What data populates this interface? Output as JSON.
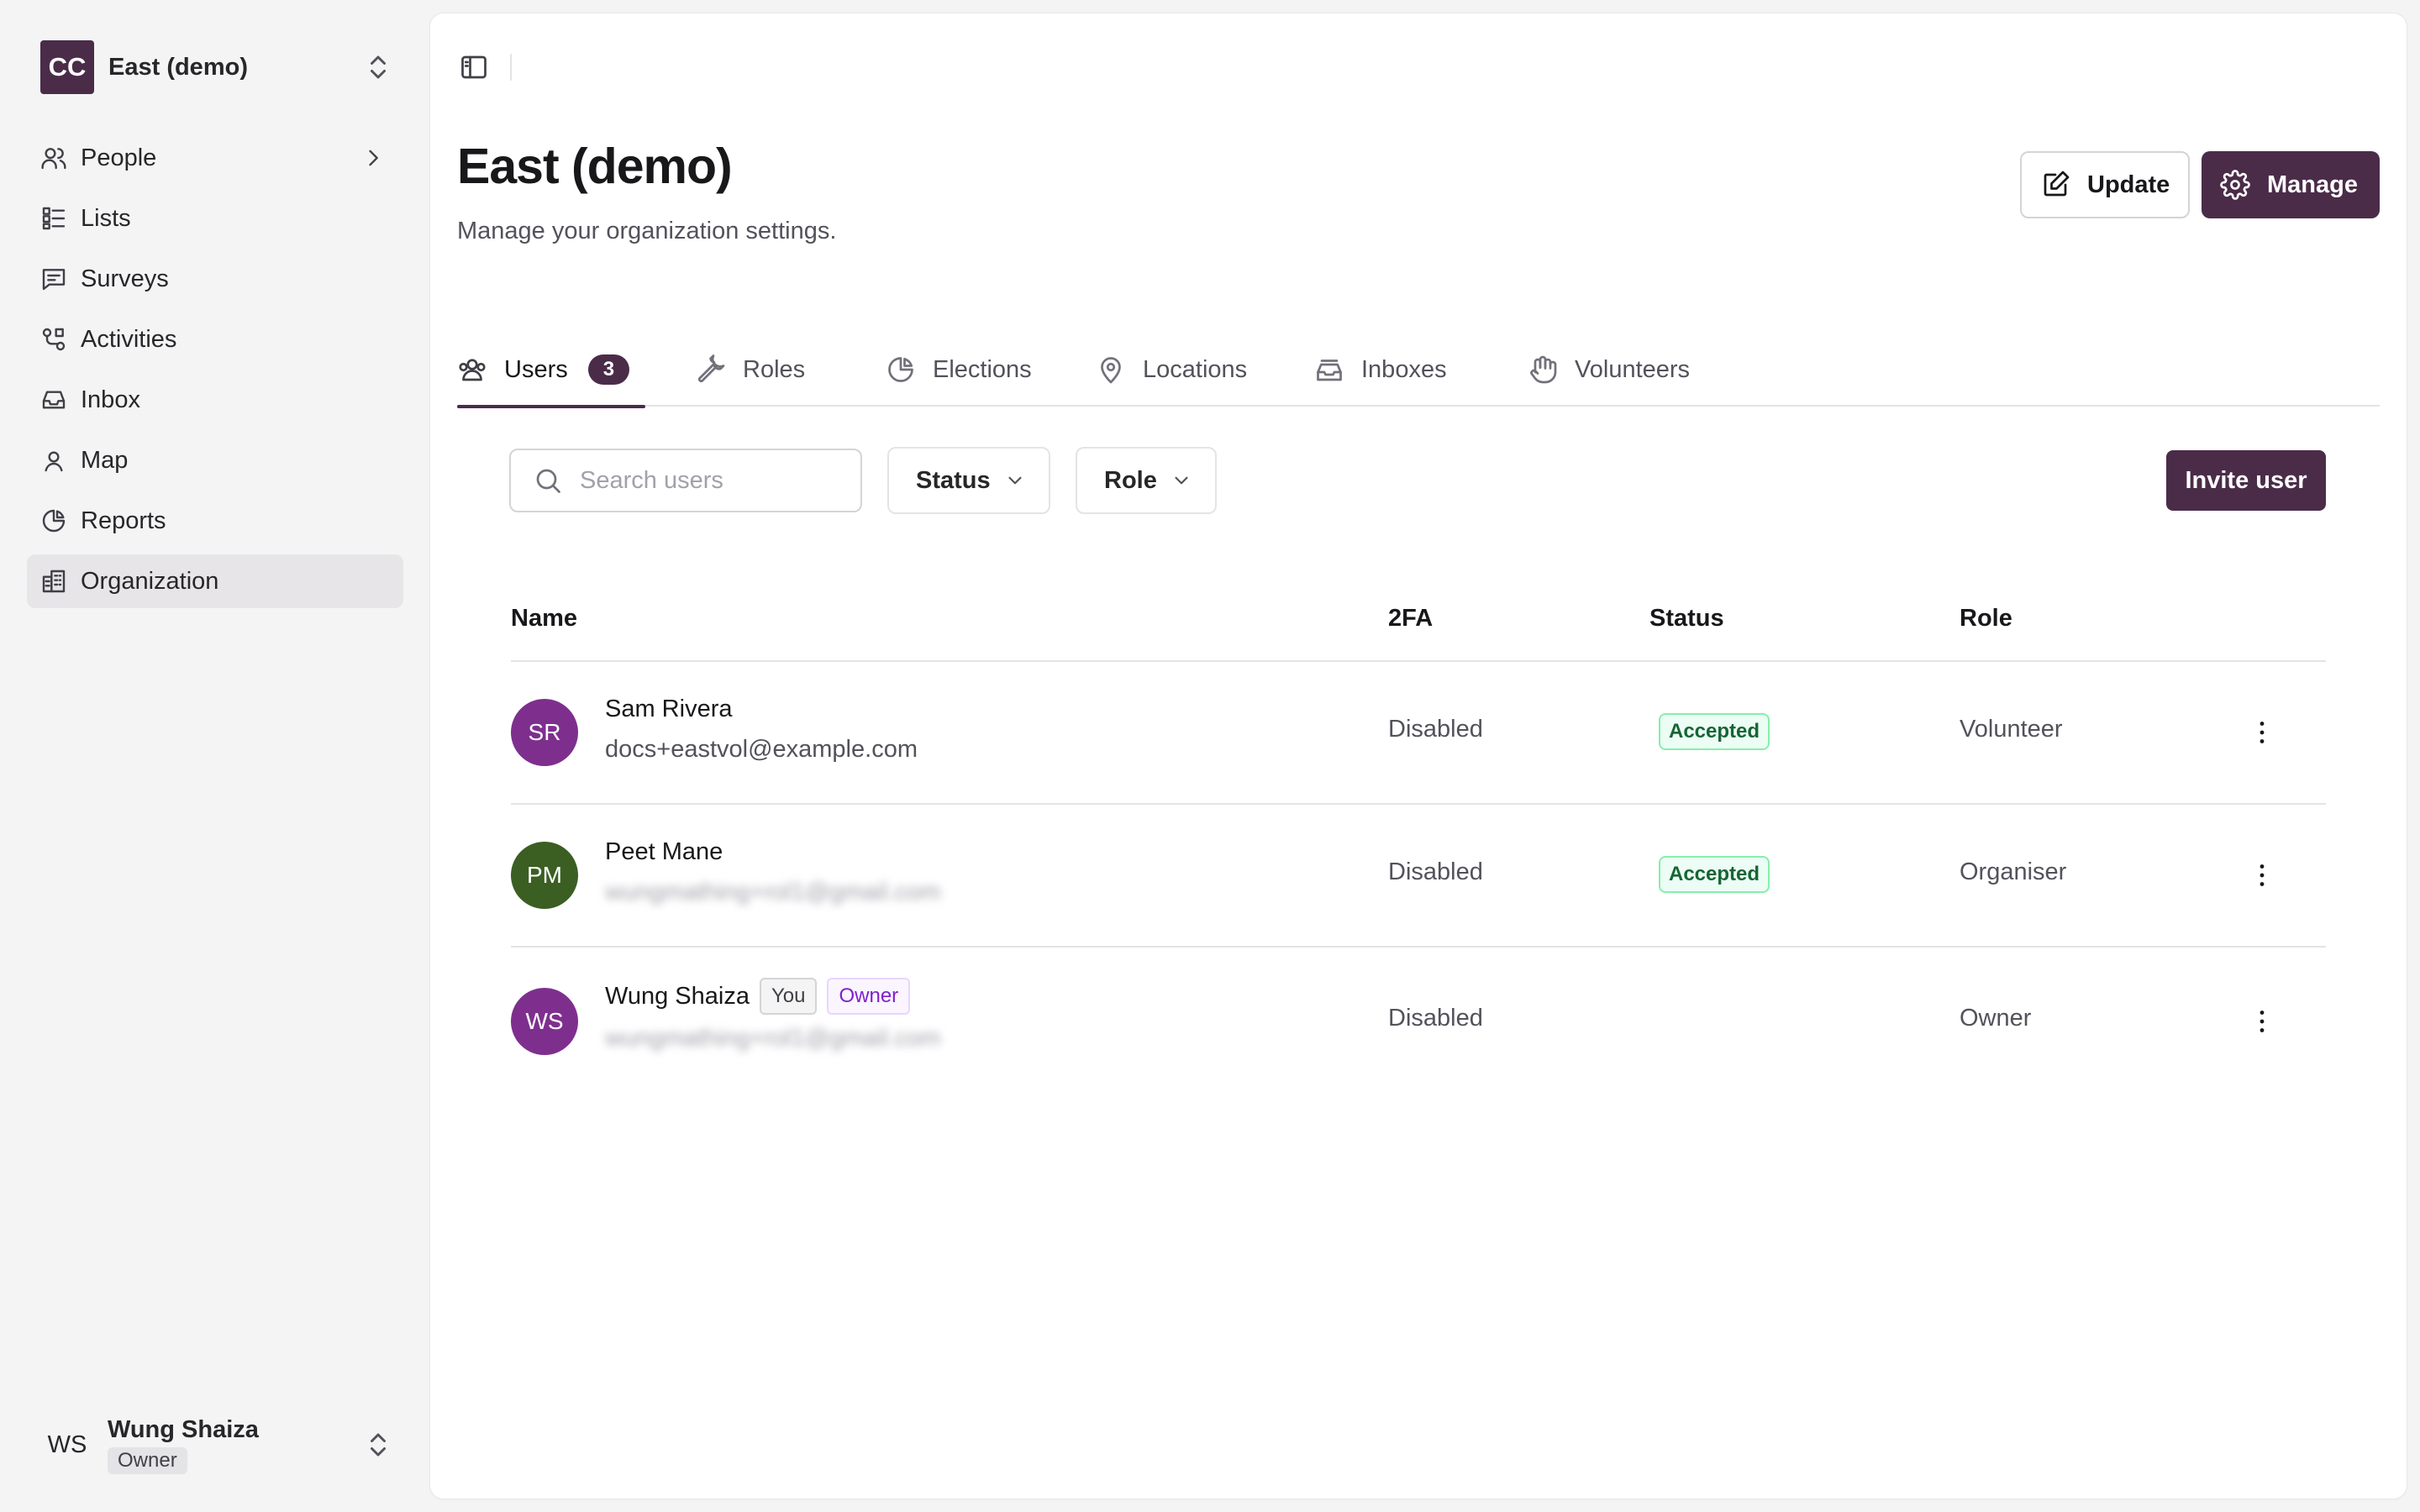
{
  "org": {
    "logo_initials": "CC",
    "name": "East (demo)"
  },
  "nav": {
    "items": [
      {
        "label": "People",
        "icon": "users-icon"
      },
      {
        "label": "Lists",
        "icon": "list-icon"
      },
      {
        "label": "Surveys",
        "icon": "message-square-icon"
      },
      {
        "label": "Activities",
        "icon": "route-icon"
      },
      {
        "label": "Inbox",
        "icon": "inbox-icon"
      },
      {
        "label": "Map",
        "icon": "map-pin-icon"
      },
      {
        "label": "Reports",
        "icon": "pie-chart-icon"
      },
      {
        "label": "Organization",
        "icon": "building-icon",
        "active": true
      }
    ]
  },
  "current_user": {
    "initials": "WS",
    "name": "Wung Shaiza",
    "role": "Owner"
  },
  "header": {
    "title": "East (demo)",
    "subtitle": "Manage your organization settings.",
    "update_label": "Update",
    "manage_label": "Manage"
  },
  "tabs": [
    {
      "label": "Users",
      "badge": "3",
      "active": true
    },
    {
      "label": "Roles"
    },
    {
      "label": "Elections"
    },
    {
      "label": "Locations"
    },
    {
      "label": "Inboxes"
    },
    {
      "label": "Volunteers"
    }
  ],
  "toolbar": {
    "search_placeholder": "Search users",
    "status_filter": "Status",
    "role_filter": "Role",
    "invite_label": "Invite user"
  },
  "table": {
    "columns": [
      "Name",
      "2FA",
      "Status",
      "Role"
    ],
    "rows": [
      {
        "initials": "SR",
        "avatar_color": "#7e2f8e",
        "name": "Sam Rivera",
        "email": "docs+eastvol@example.com",
        "twofa": "Disabled",
        "status": "Accepted",
        "role": "Volunteer"
      },
      {
        "initials": "PM",
        "avatar_color": "#3b5e23",
        "name": "Peet Mane",
        "email": "wungmathing+rol1@gmail.com",
        "twofa": "Disabled",
        "status": "Accepted",
        "role": "Organiser"
      },
      {
        "initials": "WS",
        "avatar_color": "#7e2f8e",
        "name": "Wung Shaiza",
        "tag_you": "You",
        "tag_owner": "Owner",
        "email": "wungmathing+rol1@gmail.com",
        "twofa": "Disabled",
        "status": "",
        "role": "Owner"
      }
    ]
  },
  "colors": {
    "brand": "#4a2c48",
    "accepted_text": "#166534",
    "accepted_bg": "#ecfdf5"
  }
}
